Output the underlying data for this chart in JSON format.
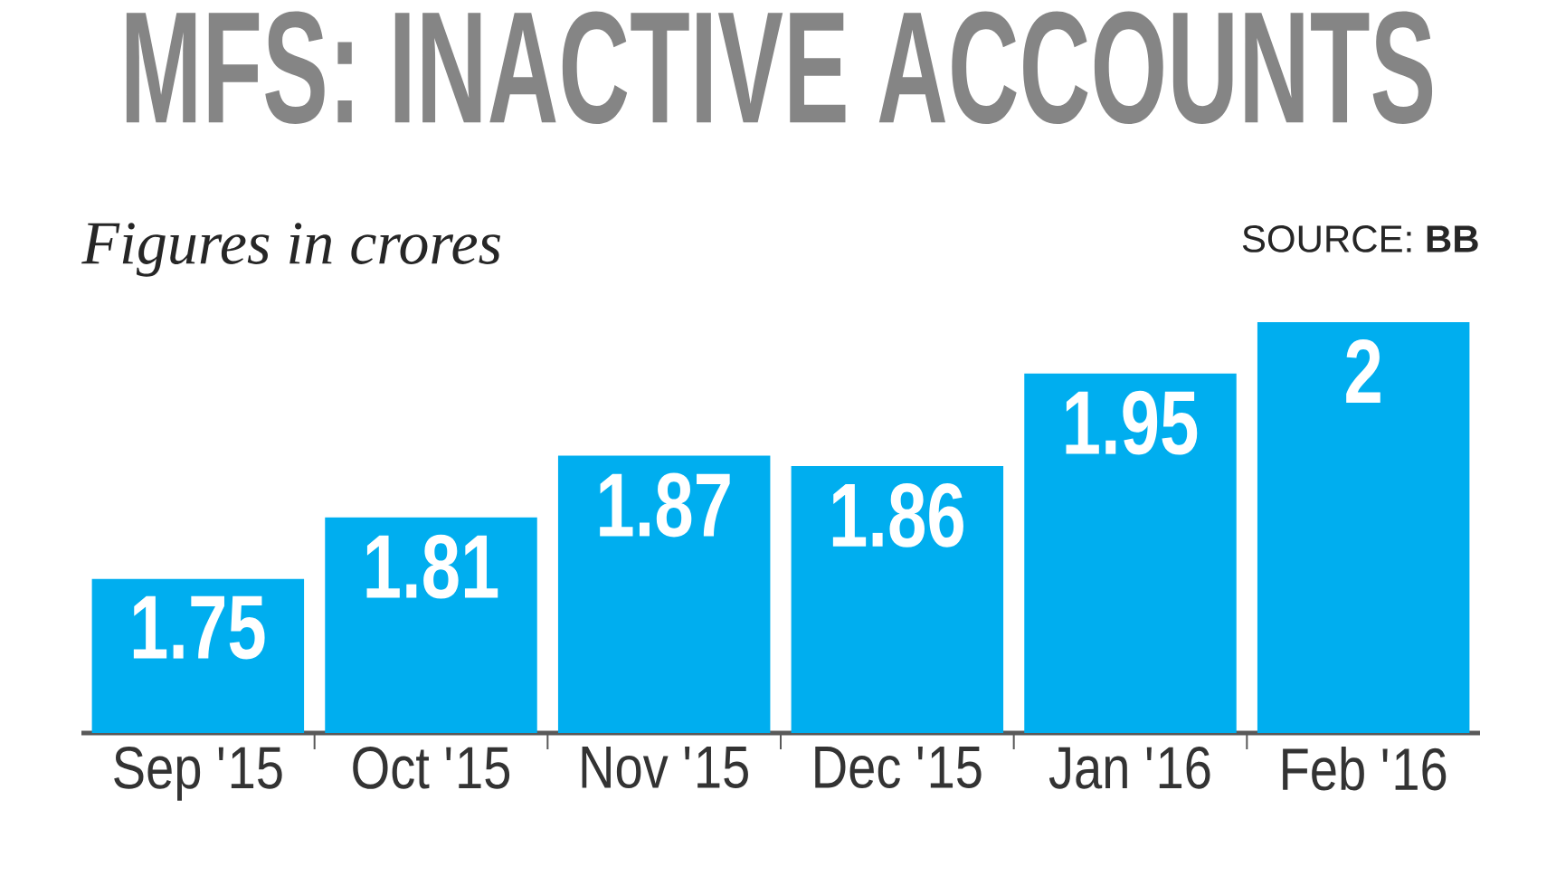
{
  "chart_data": {
    "type": "bar",
    "title": "MFS: INACTIVE ACCOUNTS",
    "annotations": [
      "*Figures in crores*",
      "SOURCE: **BB**"
    ],
    "categories": [
      "Sep '15",
      "Oct '15",
      "Nov '15",
      "Dec '15",
      "Jan '16",
      "Feb '16"
    ],
    "values": [
      1.75,
      1.81,
      1.87,
      1.86,
      1.95,
      2
    ],
    "color": "#00aeef",
    "ylim": [
      1.6,
      2.0
    ],
    "data_labels": true,
    "tick_labels": "x"
  }
}
